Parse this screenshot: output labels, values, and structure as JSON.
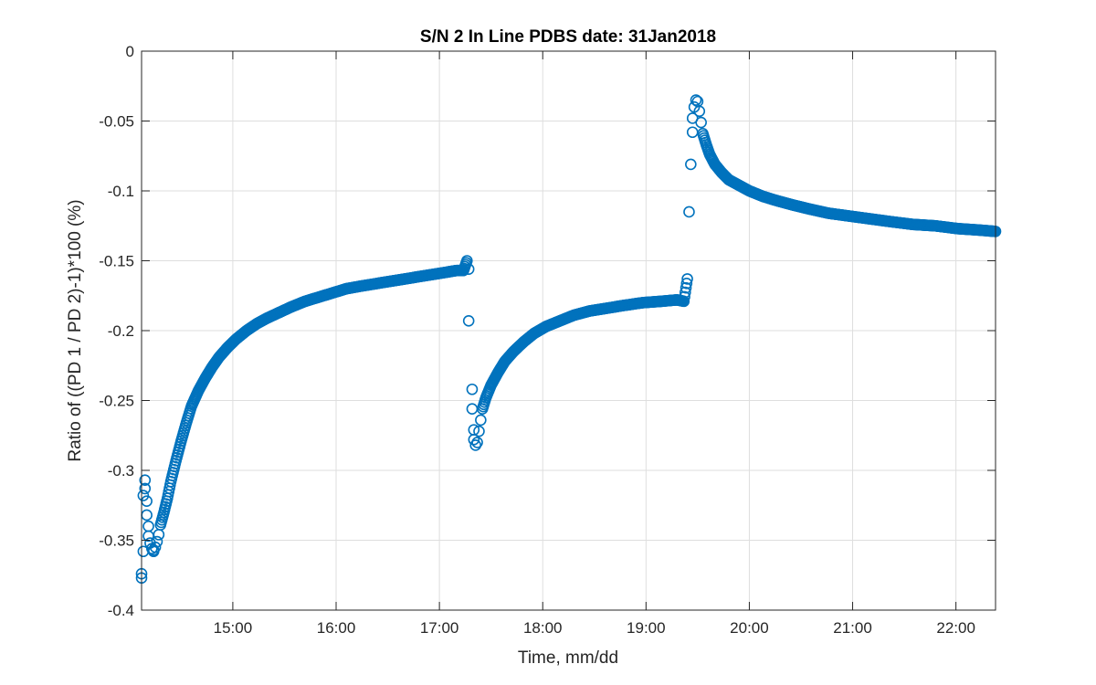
{
  "chart_data": {
    "type": "scatter",
    "title": "S/N 2 In Line PDBS date: 31Jan2018",
    "xlabel": "Time, mm/dd",
    "ylabel": "Ratio of ((PD 1 / PD 2)-1)*100 (%)",
    "xlim": [
      "14:07",
      "22:23"
    ],
    "ylim": [
      -0.4,
      0
    ],
    "xticks": [
      "15:00",
      "16:00",
      "17:00",
      "18:00",
      "19:00",
      "20:00",
      "21:00",
      "22:00"
    ],
    "yticks": [
      "0",
      "-0.05",
      "-0.1",
      "-0.15",
      "-0.2",
      "-0.25",
      "-0.3",
      "-0.35",
      "-0.4"
    ],
    "ytick_values": [
      0,
      -0.05,
      -0.1,
      -0.15,
      -0.2,
      -0.25,
      -0.3,
      -0.35,
      -0.4
    ],
    "grid": true,
    "marker": "circle",
    "color": "#0072BD",
    "series": [
      {
        "x": [
          "14:07",
          "14:07",
          "14:08",
          "14:08",
          "14:09",
          "14:09",
          "14:10",
          "14:10",
          "14:11",
          "14:11",
          "14:12",
          "14:13",
          "14:14",
          "14:14",
          "14:15",
          "14:16",
          "14:17",
          "14:18",
          "14:20",
          "14:22",
          "14:24",
          "14:27",
          "14:30",
          "14:33",
          "14:36",
          "14:40",
          "14:44",
          "14:48",
          "14:52",
          "14:57",
          "15:02",
          "15:08",
          "15:14",
          "15:20",
          "15:27",
          "15:34",
          "15:42",
          "15:50",
          "15:58",
          "16:06",
          "16:15",
          "16:25",
          "16:35",
          "16:45",
          "16:55",
          "17:05",
          "17:10",
          "17:14",
          "17:16",
          "17:17",
          "17:17",
          "17:19",
          "17:19",
          "17:20",
          "17:20",
          "17:21",
          "17:22",
          "17:23",
          "17:24",
          "17:25",
          "17:27",
          "17:30",
          "17:34",
          "17:38",
          "17:43",
          "17:49",
          "17:55",
          "18:02",
          "18:10",
          "18:18",
          "18:27",
          "18:37",
          "18:47",
          "18:58",
          "19:09",
          "19:18",
          "19:22",
          "19:24",
          "19:25",
          "19:26",
          "19:27",
          "19:27",
          "19:28",
          "19:29",
          "19:30",
          "19:31",
          "19:32",
          "19:33",
          "19:35",
          "19:37",
          "19:40",
          "19:44",
          "19:48",
          "19:54",
          "20:00",
          "20:08",
          "20:16",
          "20:25",
          "20:35",
          "20:46",
          "20:58",
          "21:10",
          "21:22",
          "21:35",
          "21:48",
          "22:01",
          "22:13",
          "22:23"
        ],
        "y": [
          -0.377,
          -0.374,
          -0.358,
          -0.318,
          -0.307,
          -0.313,
          -0.322,
          -0.332,
          -0.34,
          -0.347,
          -0.352,
          -0.356,
          -0.358,
          -0.357,
          -0.355,
          -0.351,
          -0.346,
          -0.339,
          -0.33,
          -0.32,
          -0.308,
          -0.293,
          -0.279,
          -0.266,
          -0.254,
          -0.243,
          -0.234,
          -0.226,
          -0.219,
          -0.212,
          -0.206,
          -0.2,
          -0.195,
          -0.191,
          -0.187,
          -0.183,
          -0.179,
          -0.176,
          -0.173,
          -0.17,
          -0.168,
          -0.166,
          -0.164,
          -0.162,
          -0.16,
          -0.158,
          -0.157,
          -0.157,
          -0.15,
          -0.156,
          -0.193,
          -0.242,
          -0.256,
          -0.271,
          -0.278,
          -0.282,
          -0.28,
          -0.272,
          -0.264,
          -0.256,
          -0.248,
          -0.239,
          -0.23,
          -0.222,
          -0.215,
          -0.208,
          -0.202,
          -0.197,
          -0.193,
          -0.189,
          -0.186,
          -0.184,
          -0.182,
          -0.18,
          -0.179,
          -0.178,
          -0.179,
          -0.163,
          -0.115,
          -0.081,
          -0.058,
          -0.048,
          -0.04,
          -0.035,
          -0.036,
          -0.043,
          -0.051,
          -0.059,
          -0.067,
          -0.074,
          -0.081,
          -0.087,
          -0.092,
          -0.096,
          -0.1,
          -0.104,
          -0.107,
          -0.11,
          -0.113,
          -0.116,
          -0.118,
          -0.12,
          -0.122,
          -0.124,
          -0.125,
          -0.127,
          -0.128,
          -0.129
        ]
      }
    ]
  }
}
